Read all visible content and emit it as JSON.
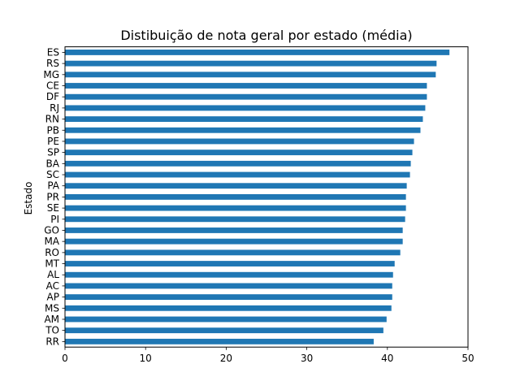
{
  "chart_data": {
    "type": "bar",
    "orientation": "horizontal",
    "title": "Distibuição de nota geral por estado (média)",
    "xlabel": "",
    "ylabel": "Estado",
    "xlim": [
      0,
      50
    ],
    "xticks": [
      0,
      10,
      20,
      30,
      40,
      50
    ],
    "grid": false,
    "bar_color": "#1f77b4",
    "categories": [
      "ES",
      "RS",
      "MG",
      "CE",
      "DF",
      "RJ",
      "RN",
      "PB",
      "PE",
      "SP",
      "BA",
      "SC",
      "PA",
      "PR",
      "SE",
      "PI",
      "GO",
      "MA",
      "RO",
      "MT",
      "AL",
      "AC",
      "AP",
      "MS",
      "AM",
      "TO",
      "RR"
    ],
    "values": [
      47.7,
      46.1,
      46.0,
      44.9,
      44.9,
      44.7,
      44.4,
      44.1,
      43.3,
      43.1,
      42.9,
      42.8,
      42.4,
      42.3,
      42.3,
      42.2,
      41.9,
      41.9,
      41.6,
      40.9,
      40.7,
      40.6,
      40.6,
      40.5,
      39.9,
      39.5,
      38.3
    ]
  }
}
